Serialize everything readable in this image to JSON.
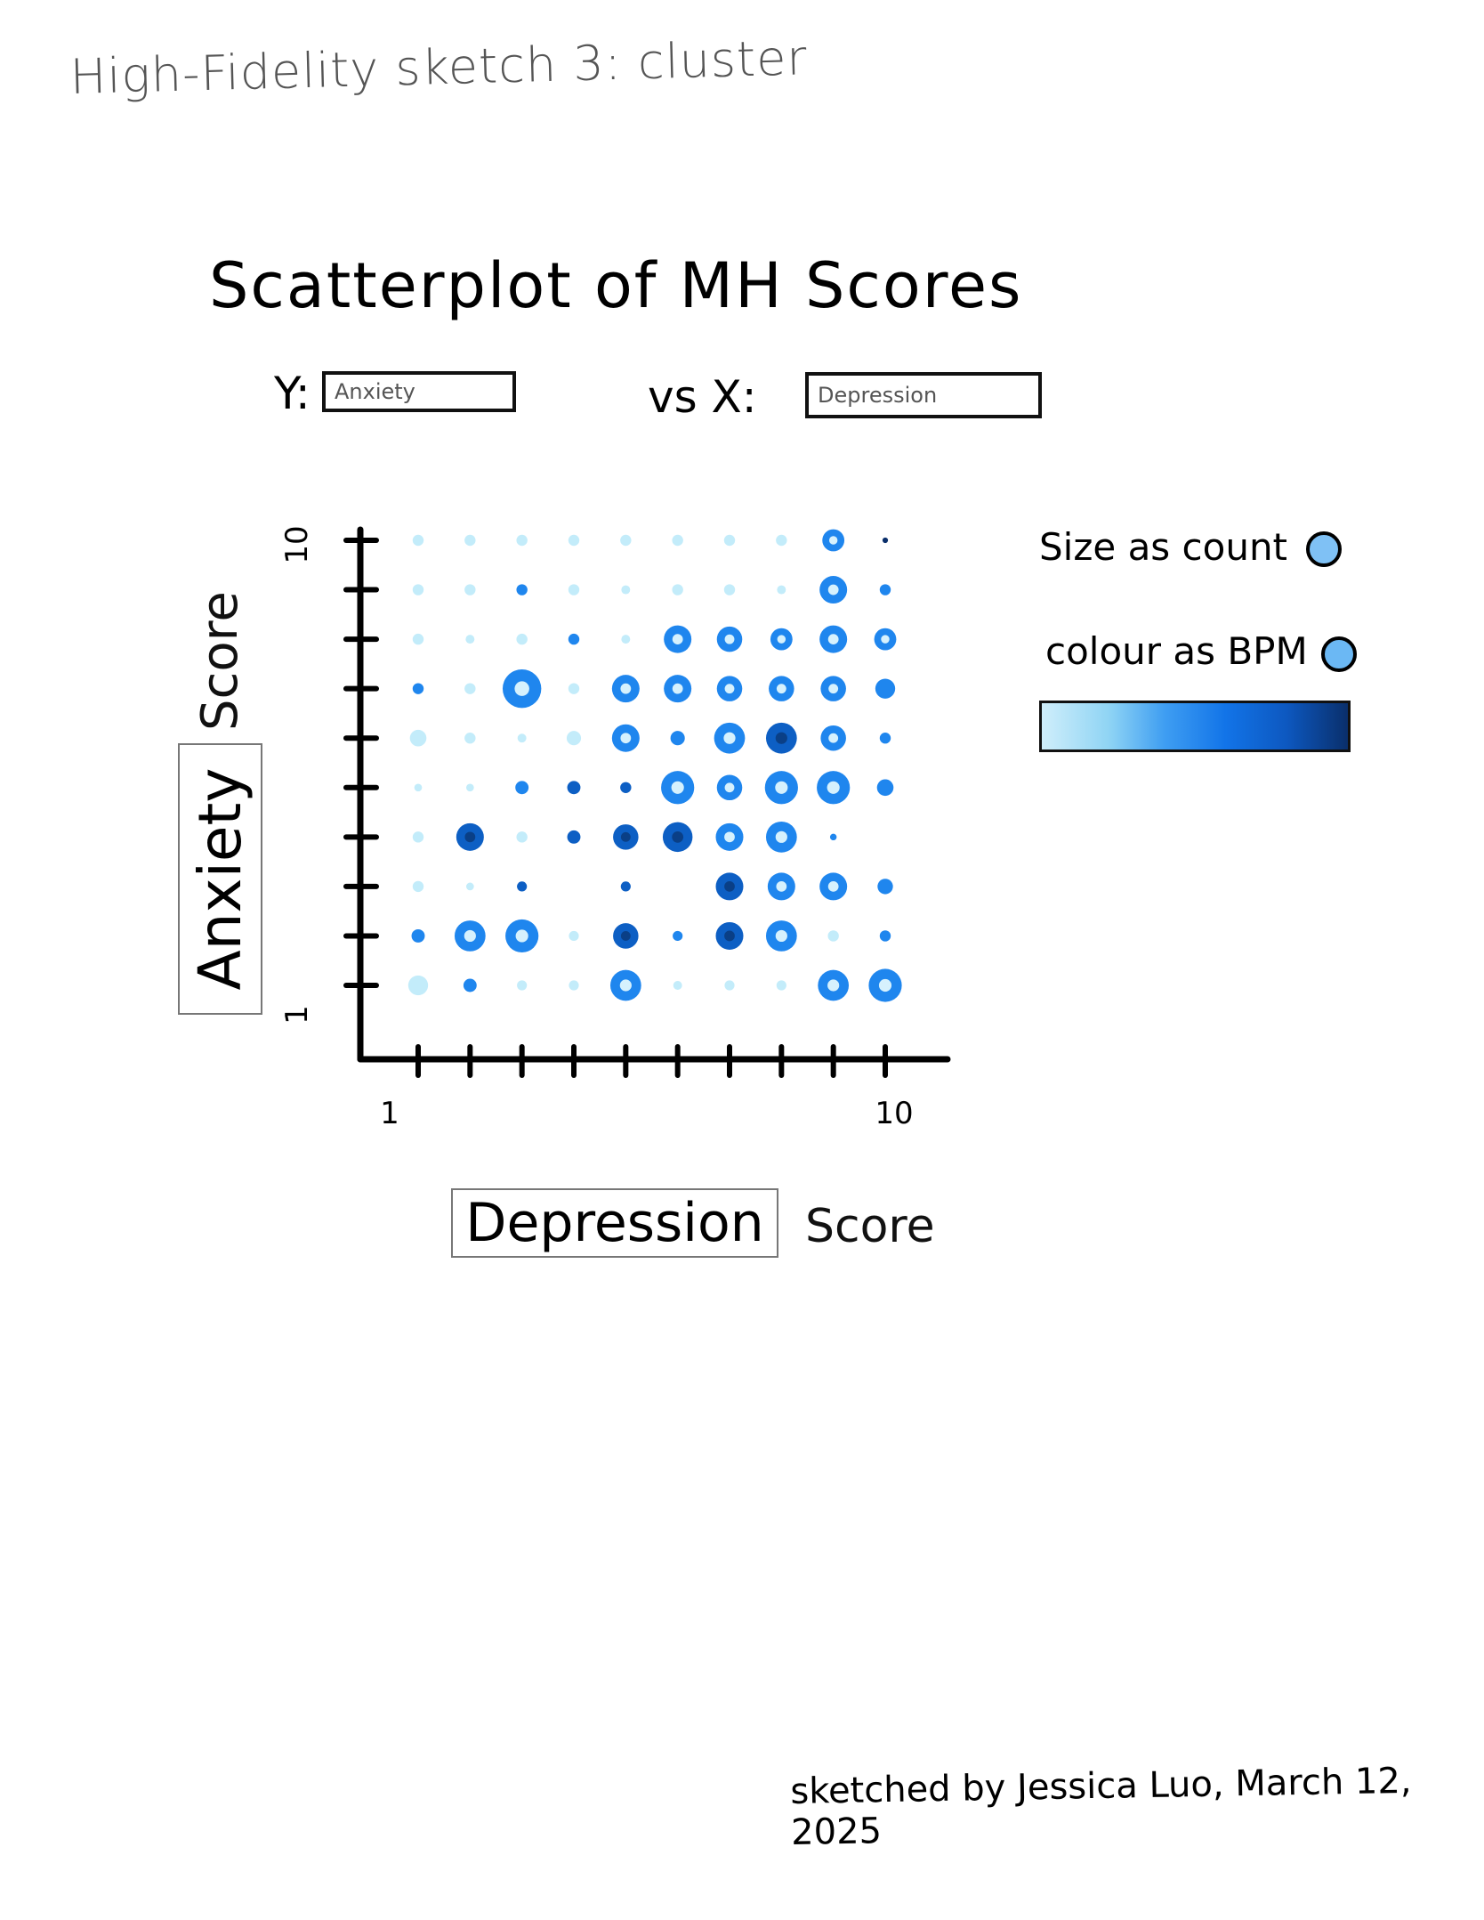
{
  "sketch_title": "High-Fidelity sketch 3: cluster",
  "controls": {
    "y_label": "Y:",
    "y_select_value": "Anxiety",
    "vs_label": "vs X:",
    "x_select_value": "Depression"
  },
  "legend": {
    "size_label": "Size as count",
    "colour_label": "colour as BPM",
    "size_swatch_color": "#7fc1f5",
    "colour_swatch_color": "#6bb8f4"
  },
  "signature": "sketched by Jessica Luo, March 12, 2025",
  "chart_data": {
    "type": "scatter",
    "title": "Scatterplot of MH Scores",
    "xlabel": "Depression",
    "xlabel_suffix": "Score",
    "ylabel": "Anxiety",
    "ylabel_suffix": "Score",
    "x_tick_labels": [
      {
        "value": 1,
        "label": "1"
      },
      {
        "value": 10,
        "label": "10"
      }
    ],
    "y_tick_labels": [
      {
        "value": 1,
        "label": "1"
      },
      {
        "value": 10,
        "label": "10"
      }
    ],
    "xlim": [
      0.6,
      10.6
    ],
    "ylim": [
      0.6,
      10.6
    ],
    "size_encoding": "count",
    "colour_encoding": "BPM",
    "color_scale": [
      "#c3ecfa",
      "#8fd6f3",
      "#1f86ee",
      "#0d5fc4",
      "#0a3f86"
    ],
    "points": [
      {
        "x": 1,
        "y": 10,
        "size": 1,
        "color": "#c3ecfa"
      },
      {
        "x": 2,
        "y": 10,
        "size": 1,
        "color": "#c3ecfa"
      },
      {
        "x": 3,
        "y": 10,
        "size": 1,
        "color": "#c3ecfa"
      },
      {
        "x": 4,
        "y": 10,
        "size": 1,
        "color": "#c3ecfa"
      },
      {
        "x": 5,
        "y": 10,
        "size": 1,
        "color": "#c3ecfa"
      },
      {
        "x": 6,
        "y": 10,
        "size": 1,
        "color": "#c3ecfa"
      },
      {
        "x": 7,
        "y": 10,
        "size": 1,
        "color": "#c3ecfa"
      },
      {
        "x": 8,
        "y": 10,
        "size": 1,
        "color": "#c3ecfa"
      },
      {
        "x": 9,
        "y": 10,
        "size": 2,
        "color": "#1f86ee"
      },
      {
        "x": 10,
        "y": 10,
        "size": 0.5,
        "color": "#0a2f6b"
      },
      {
        "x": 1,
        "y": 9,
        "size": 1,
        "color": "#c3ecfa"
      },
      {
        "x": 2,
        "y": 9,
        "size": 1,
        "color": "#c3ecfa"
      },
      {
        "x": 3,
        "y": 9,
        "size": 1,
        "color": "#1f86ee"
      },
      {
        "x": 4,
        "y": 9,
        "size": 1,
        "color": "#c3ecfa"
      },
      {
        "x": 5,
        "y": 9,
        "size": 0.8,
        "color": "#c3ecfa"
      },
      {
        "x": 6,
        "y": 9,
        "size": 1,
        "color": "#c3ecfa"
      },
      {
        "x": 7,
        "y": 9,
        "size": 1,
        "color": "#c3ecfa"
      },
      {
        "x": 8,
        "y": 9,
        "size": 0.8,
        "color": "#c3ecfa"
      },
      {
        "x": 9,
        "y": 9,
        "size": 2.5,
        "color": "#1f86ee"
      },
      {
        "x": 10,
        "y": 9,
        "size": 1,
        "color": "#1f86ee"
      },
      {
        "x": 1,
        "y": 8,
        "size": 1,
        "color": "#c3ecfa"
      },
      {
        "x": 2,
        "y": 8,
        "size": 0.8,
        "color": "#c3ecfa"
      },
      {
        "x": 3,
        "y": 8,
        "size": 1,
        "color": "#c3ecfa"
      },
      {
        "x": 4,
        "y": 8,
        "size": 1,
        "color": "#1f86ee"
      },
      {
        "x": 5,
        "y": 8,
        "size": 0.8,
        "color": "#c3ecfa"
      },
      {
        "x": 6,
        "y": 8,
        "size": 2.5,
        "color": "#1f86ee"
      },
      {
        "x": 7,
        "y": 8,
        "size": 2.3,
        "color": "#1f86ee"
      },
      {
        "x": 8,
        "y": 8,
        "size": 2,
        "color": "#1f86ee"
      },
      {
        "x": 9,
        "y": 8,
        "size": 2.5,
        "color": "#1f86ee"
      },
      {
        "x": 10,
        "y": 8,
        "size": 2,
        "color": "#1f86ee"
      },
      {
        "x": 1,
        "y": 7,
        "size": 1,
        "color": "#1f86ee"
      },
      {
        "x": 2,
        "y": 7,
        "size": 1,
        "color": "#c3ecfa"
      },
      {
        "x": 3,
        "y": 7,
        "size": 3.5,
        "color": "#1f86ee"
      },
      {
        "x": 4,
        "y": 7,
        "size": 1,
        "color": "#c3ecfa"
      },
      {
        "x": 5,
        "y": 7,
        "size": 2.5,
        "color": "#1f86ee"
      },
      {
        "x": 6,
        "y": 7,
        "size": 2.5,
        "color": "#1f86ee"
      },
      {
        "x": 7,
        "y": 7,
        "size": 2.3,
        "color": "#1f86ee"
      },
      {
        "x": 8,
        "y": 7,
        "size": 2.3,
        "color": "#1f86ee"
      },
      {
        "x": 9,
        "y": 7,
        "size": 2.3,
        "color": "#1f86ee"
      },
      {
        "x": 10,
        "y": 7,
        "size": 1.8,
        "color": "#1f86ee"
      },
      {
        "x": 1,
        "y": 6,
        "size": 1.5,
        "color": "#c3ecfa"
      },
      {
        "x": 2,
        "y": 6,
        "size": 1,
        "color": "#c3ecfa"
      },
      {
        "x": 3,
        "y": 6,
        "size": 0.8,
        "color": "#c3ecfa"
      },
      {
        "x": 4,
        "y": 6,
        "size": 1.3,
        "color": "#c3ecfa"
      },
      {
        "x": 5,
        "y": 6,
        "size": 2.5,
        "color": "#1f86ee"
      },
      {
        "x": 6,
        "y": 6,
        "size": 1.3,
        "color": "#1f86ee"
      },
      {
        "x": 7,
        "y": 6,
        "size": 2.8,
        "color": "#1f86ee"
      },
      {
        "x": 8,
        "y": 6,
        "size": 2.8,
        "color": "#0d5fc4"
      },
      {
        "x": 9,
        "y": 6,
        "size": 2.3,
        "color": "#1f86ee"
      },
      {
        "x": 10,
        "y": 6,
        "size": 1,
        "color": "#1f86ee"
      },
      {
        "x": 1,
        "y": 5,
        "size": 0.7,
        "color": "#c3ecfa"
      },
      {
        "x": 2,
        "y": 5,
        "size": 0.7,
        "color": "#c3ecfa"
      },
      {
        "x": 3,
        "y": 5,
        "size": 1.2,
        "color": "#1f86ee"
      },
      {
        "x": 4,
        "y": 5,
        "size": 1.2,
        "color": "#0d5fc4"
      },
      {
        "x": 5,
        "y": 5,
        "size": 1,
        "color": "#0d5fc4"
      },
      {
        "x": 6,
        "y": 5,
        "size": 3,
        "color": "#1f86ee"
      },
      {
        "x": 7,
        "y": 5,
        "size": 2.3,
        "color": "#1f86ee"
      },
      {
        "x": 8,
        "y": 5,
        "size": 3,
        "color": "#1f86ee"
      },
      {
        "x": 9,
        "y": 5,
        "size": 3,
        "color": "#1f86ee"
      },
      {
        "x": 10,
        "y": 5,
        "size": 1.5,
        "color": "#1f86ee"
      },
      {
        "x": 1,
        "y": 4,
        "size": 1,
        "color": "#c3ecfa"
      },
      {
        "x": 2,
        "y": 4,
        "size": 2.5,
        "color": "#0d5fc4"
      },
      {
        "x": 3,
        "y": 4,
        "size": 1,
        "color": "#c3ecfa"
      },
      {
        "x": 4,
        "y": 4,
        "size": 1.2,
        "color": "#0d5fc4"
      },
      {
        "x": 5,
        "y": 4,
        "size": 2.3,
        "color": "#0d5fc4"
      },
      {
        "x": 6,
        "y": 4,
        "size": 2.7,
        "color": "#0d5fc4"
      },
      {
        "x": 7,
        "y": 4,
        "size": 2.5,
        "color": "#1f86ee"
      },
      {
        "x": 8,
        "y": 4,
        "size": 2.8,
        "color": "#1f86ee"
      },
      {
        "x": 9,
        "y": 4,
        "size": 0.6,
        "color": "#1f86ee"
      },
      {
        "x": 1,
        "y": 3,
        "size": 1,
        "color": "#c3ecfa"
      },
      {
        "x": 2,
        "y": 3,
        "size": 0.7,
        "color": "#c3ecfa"
      },
      {
        "x": 3,
        "y": 3,
        "size": 0.9,
        "color": "#0d5fc4"
      },
      {
        "x": 5,
        "y": 3,
        "size": 0.9,
        "color": "#0d5fc4"
      },
      {
        "x": 7,
        "y": 3,
        "size": 2.5,
        "color": "#0d5fc4"
      },
      {
        "x": 8,
        "y": 3,
        "size": 2.5,
        "color": "#1f86ee"
      },
      {
        "x": 9,
        "y": 3,
        "size": 2.5,
        "color": "#1f86ee"
      },
      {
        "x": 10,
        "y": 3,
        "size": 1.4,
        "color": "#1f86ee"
      },
      {
        "x": 1,
        "y": 2,
        "size": 1.2,
        "color": "#1f86ee"
      },
      {
        "x": 2,
        "y": 2,
        "size": 2.8,
        "color": "#1f86ee"
      },
      {
        "x": 3,
        "y": 2,
        "size": 3,
        "color": "#1f86ee"
      },
      {
        "x": 4,
        "y": 2,
        "size": 0.9,
        "color": "#c3ecfa"
      },
      {
        "x": 5,
        "y": 2,
        "size": 2.3,
        "color": "#0d5fc4"
      },
      {
        "x": 6,
        "y": 2,
        "size": 0.9,
        "color": "#1f86ee"
      },
      {
        "x": 7,
        "y": 2,
        "size": 2.5,
        "color": "#0d5fc4"
      },
      {
        "x": 8,
        "y": 2,
        "size": 2.8,
        "color": "#1f86ee"
      },
      {
        "x": 9,
        "y": 2,
        "size": 1,
        "color": "#c3ecfa"
      },
      {
        "x": 10,
        "y": 2,
        "size": 1,
        "color": "#1f86ee"
      },
      {
        "x": 1,
        "y": 1,
        "size": 1.8,
        "color": "#c3ecfa"
      },
      {
        "x": 2,
        "y": 1,
        "size": 1.2,
        "color": "#1f86ee"
      },
      {
        "x": 3,
        "y": 1,
        "size": 0.9,
        "color": "#c3ecfa"
      },
      {
        "x": 4,
        "y": 1,
        "size": 0.9,
        "color": "#c3ecfa"
      },
      {
        "x": 5,
        "y": 1,
        "size": 2.8,
        "color": "#1f86ee"
      },
      {
        "x": 6,
        "y": 1,
        "size": 0.8,
        "color": "#c3ecfa"
      },
      {
        "x": 7,
        "y": 1,
        "size": 0.9,
        "color": "#c3ecfa"
      },
      {
        "x": 8,
        "y": 1,
        "size": 0.9,
        "color": "#c3ecfa"
      },
      {
        "x": 9,
        "y": 1,
        "size": 2.8,
        "color": "#1f86ee"
      },
      {
        "x": 10,
        "y": 1,
        "size": 3,
        "color": "#1f86ee"
      }
    ]
  }
}
